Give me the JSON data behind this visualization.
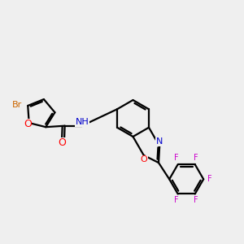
{
  "bg_color": "#efefef",
  "bond_color": "#000000",
  "bond_lw": 1.6,
  "atom_colors": {
    "Br": "#CC6600",
    "O": "#FF0000",
    "N": "#0000CC",
    "F": "#CC00CC",
    "C": "#000000"
  },
  "font_size": 8.0,
  "fig_size": [
    3.0,
    3.0
  ],
  "dpi": 100
}
